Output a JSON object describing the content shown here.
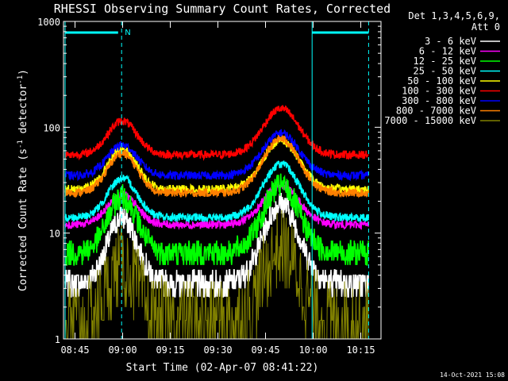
{
  "chart_data": {
    "type": "line",
    "title": "RHESSI Observing Summary Count Rates, Corrected",
    "xlabel": "Start Time (02-Apr-07 08:41:22)",
    "ylabel_parts": {
      "main": "Corrected Count Rate (s",
      "sup1": "-1",
      "mid": " detector",
      "sup2": "-1",
      "end": ")"
    },
    "yscale": "log",
    "ylim": [
      1,
      1000
    ],
    "xlim_minutes": [
      0,
      100
    ],
    "x_ticks": [
      "08:45",
      "09:00",
      "09:15",
      "09:30",
      "09:45",
      "10:00",
      "10:15"
    ],
    "x_tick_minutes": [
      3.63,
      18.63,
      33.63,
      48.63,
      63.63,
      78.63,
      93.63
    ],
    "y_ticks": [
      "1",
      "10",
      "100",
      "1000"
    ],
    "y_tick_values": [
      1,
      10,
      100,
      1000
    ],
    "legend_header": [
      "Det 1,3,4,5,6,9,",
      "Att 0"
    ],
    "series": [
      {
        "name": "3 - 6 keV",
        "color": "#ffffff",
        "base": 3.3,
        "peaks": [
          14,
          19
        ]
      },
      {
        "name": "6 - 12 keV",
        "color": "#ff00ff",
        "base": 12,
        "peaks": [
          23,
          28
        ]
      },
      {
        "name": "12 - 25 keV",
        "color": "#00ff00",
        "base": 6.5,
        "peaks": [
          22,
          28
        ]
      },
      {
        "name": "25 - 50 keV",
        "color": "#00ffff",
        "base": 14,
        "peaks": [
          33,
          45
        ]
      },
      {
        "name": "50 - 100 keV",
        "color": "#ffff00",
        "base": 26,
        "peaks": [
          62,
          75
        ]
      },
      {
        "name": "100 - 300 keV",
        "color": "#ff0000",
        "base": 55,
        "peaks": [
          115,
          150
        ]
      },
      {
        "name": "300 - 800 keV",
        "color": "#0000ff",
        "base": 35,
        "peaks": [
          68,
          88
        ]
      },
      {
        "name": "800 - 7000 keV",
        "color": "#ff8000",
        "base": 24,
        "peaks": [
          57,
          78
        ]
      },
      {
        "name": "7000 - 15000 keV",
        "color": "#808000",
        "base": 1.5,
        "peaks": [
          5,
          7
        ]
      }
    ],
    "saa_marker_label": "N",
    "annotations": {
      "timestamp": "14-Oct-2021 15:08"
    }
  }
}
